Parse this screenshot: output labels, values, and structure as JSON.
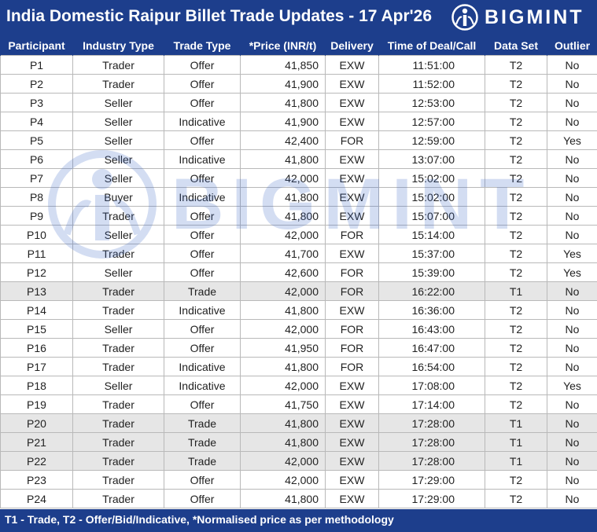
{
  "title": "India Domestic Raipur Billet Trade Updates - 17 Apr'26",
  "brand": {
    "name": "BIGMINT",
    "logo_icon": "bigmint-logo-icon"
  },
  "watermark": {
    "text": "BIGMINT"
  },
  "table": {
    "columns": [
      "Participant",
      "Industry Type",
      "Trade Type",
      "*Price (INR/t)",
      "Delivery",
      "Time of Deal/Call",
      "Data Set",
      "Outlier"
    ],
    "rows": [
      [
        "P1",
        "Trader",
        "Offer",
        "41,850",
        "EXW",
        "11:51:00",
        "T2",
        "No"
      ],
      [
        "P2",
        "Trader",
        "Offer",
        "41,900",
        "EXW",
        "11:52:00",
        "T2",
        "No"
      ],
      [
        "P3",
        "Seller",
        "Offer",
        "41,800",
        "EXW",
        "12:53:00",
        "T2",
        "No"
      ],
      [
        "P4",
        "Seller",
        "Indicative",
        "41,900",
        "EXW",
        "12:57:00",
        "T2",
        "No"
      ],
      [
        "P5",
        "Seller",
        "Offer",
        "42,400",
        "FOR",
        "12:59:00",
        "T2",
        "Yes"
      ],
      [
        "P6",
        "Seller",
        "Indicative",
        "41,800",
        "EXW",
        "13:07:00",
        "T2",
        "No"
      ],
      [
        "P7",
        "Seller",
        "Offer",
        "42,000",
        "EXW",
        "15:02:00",
        "T2",
        "No"
      ],
      [
        "P8",
        "Buyer",
        "Indicative",
        "41,800",
        "EXW",
        "15:02:00",
        "T2",
        "No"
      ],
      [
        "P9",
        "Trader",
        "Offer",
        "41,800",
        "EXW",
        "15:07:00",
        "T2",
        "No"
      ],
      [
        "P10",
        "Seller",
        "Offer",
        "42,000",
        "FOR",
        "15:14:00",
        "T2",
        "No"
      ],
      [
        "P11",
        "Trader",
        "Offer",
        "41,700",
        "EXW",
        "15:37:00",
        "T2",
        "Yes"
      ],
      [
        "P12",
        "Seller",
        "Offer",
        "42,600",
        "FOR",
        "15:39:00",
        "T2",
        "Yes"
      ],
      [
        "P13",
        "Trader",
        "Trade",
        "42,000",
        "FOR",
        "16:22:00",
        "T1",
        "No"
      ],
      [
        "P14",
        "Trader",
        "Indicative",
        "41,800",
        "EXW",
        "16:36:00",
        "T2",
        "No"
      ],
      [
        "P15",
        "Seller",
        "Offer",
        "42,000",
        "FOR",
        "16:43:00",
        "T2",
        "No"
      ],
      [
        "P16",
        "Trader",
        "Offer",
        "41,950",
        "FOR",
        "16:47:00",
        "T2",
        "No"
      ],
      [
        "P17",
        "Trader",
        "Indicative",
        "41,800",
        "FOR",
        "16:54:00",
        "T2",
        "No"
      ],
      [
        "P18",
        "Seller",
        "Indicative",
        "42,000",
        "EXW",
        "17:08:00",
        "T2",
        "Yes"
      ],
      [
        "P19",
        "Trader",
        "Offer",
        "41,750",
        "EXW",
        "17:14:00",
        "T2",
        "No"
      ],
      [
        "P20",
        "Trader",
        "Trade",
        "41,800",
        "EXW",
        "17:28:00",
        "T1",
        "No"
      ],
      [
        "P21",
        "Trader",
        "Trade",
        "41,800",
        "EXW",
        "17:28:00",
        "T1",
        "No"
      ],
      [
        "P22",
        "Trader",
        "Trade",
        "42,000",
        "EXW",
        "17:28:00",
        "T1",
        "No"
      ],
      [
        "P23",
        "Trader",
        "Offer",
        "42,000",
        "EXW",
        "17:29:00",
        "T2",
        "No"
      ],
      [
        "P24",
        "Trader",
        "Offer",
        "41,800",
        "EXW",
        "17:29:00",
        "T2",
        "No"
      ]
    ]
  },
  "footer": "T1 - Trade, T2 - Offer/Bid/Indicative, *Normalised price as per methodology",
  "colors": {
    "header_bg": "#1d3e8c",
    "trade_row_bg": "#e6e6e6",
    "border": "#b9b9b9",
    "watermark": "#3b68c8"
  }
}
